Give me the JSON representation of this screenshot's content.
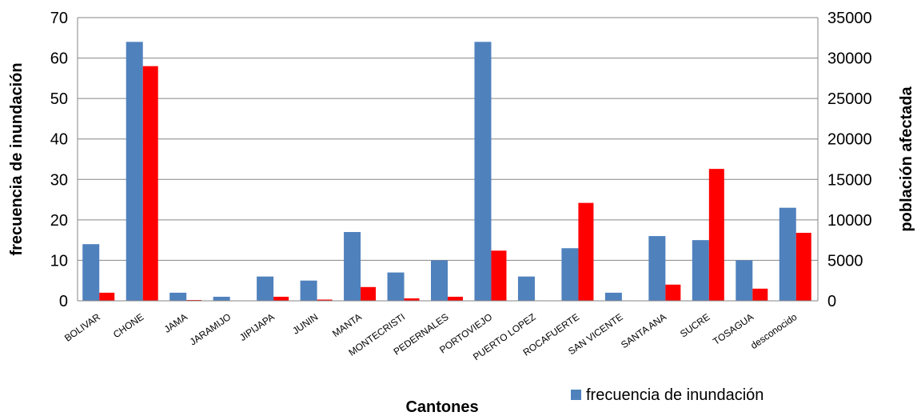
{
  "chart_data": {
    "type": "bar",
    "categories": [
      "BOLIVAR",
      "CHONE",
      "JAMA",
      "JARAMIJO",
      "JIPIJAPA",
      "JUNIN",
      "MANTA",
      "MONTECRISTI",
      "PEDERNALES",
      "PORTOVIEJO",
      "PUERTO LOPEZ",
      "ROCAFUERTE",
      "SAN VICENTE",
      "SANTA ANA",
      "SUCRE",
      "TOSAGUA",
      "desconocido"
    ],
    "series": [
      {
        "name": "frecuencia de inundación",
        "axis": "left",
        "color": "#4f81bd",
        "values": [
          14,
          64,
          2,
          1,
          6,
          5,
          17,
          7,
          10,
          64,
          6,
          13,
          2,
          16,
          15,
          10,
          23
        ]
      },
      {
        "axis": "right",
        "color": "#ff0000",
        "values": [
          1000,
          29000,
          100,
          0,
          500,
          150,
          1700,
          300,
          500,
          6200,
          50,
          12100,
          50,
          2000,
          16300,
          1500,
          8400
        ]
      }
    ],
    "xlabel": "Cantones",
    "ylabel": "frecuencia de inundación",
    "y2label": "población afectada",
    "ylim": [
      0,
      70
    ],
    "y2lim": [
      0,
      35000
    ],
    "yticks": [
      "0",
      "10",
      "20",
      "30",
      "40",
      "50",
      "60",
      "70"
    ],
    "y2ticks": [
      "0",
      "5000",
      "10000",
      "15000",
      "20000",
      "25000",
      "30000",
      "35000"
    ],
    "grid": true,
    "legend": "bottom-right",
    "legend_entries": [
      "frecuencia de inundación"
    ]
  }
}
